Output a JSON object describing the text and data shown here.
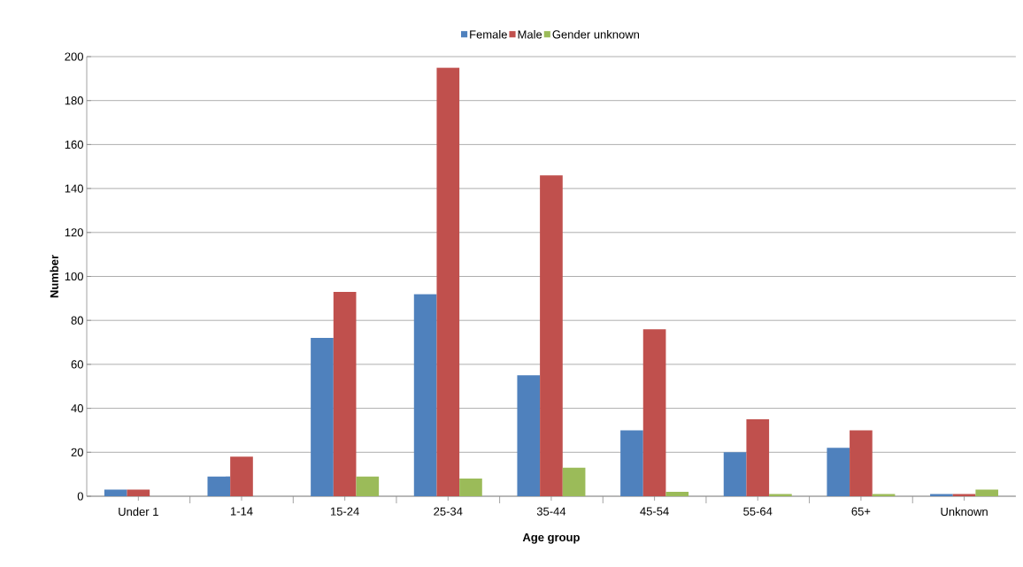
{
  "chart_data": {
    "type": "bar",
    "xlabel": "Age group",
    "ylabel": "Number",
    "categories": [
      "Under 1",
      "1-14",
      "15-24",
      "25-34",
      "35-44",
      "45-54",
      "55-64",
      "65+",
      "Unknown"
    ],
    "series": [
      {
        "name": "Female",
        "color": "#4f81bd",
        "values": [
          3,
          9,
          72,
          92,
          55,
          30,
          20,
          22,
          1
        ]
      },
      {
        "name": "Male",
        "color": "#c0504d",
        "values": [
          3,
          18,
          93,
          195,
          146,
          76,
          35,
          30,
          1
        ]
      },
      {
        "name": "Gender unknown",
        "color": "#9bbb59",
        "values": [
          0,
          0,
          9,
          8,
          13,
          2,
          1,
          1,
          3
        ]
      }
    ],
    "ylim": [
      0,
      200
    ],
    "yticks": [
      0,
      20,
      40,
      60,
      80,
      100,
      120,
      140,
      160,
      180,
      200
    ],
    "grid": "y",
    "legend": "top"
  }
}
